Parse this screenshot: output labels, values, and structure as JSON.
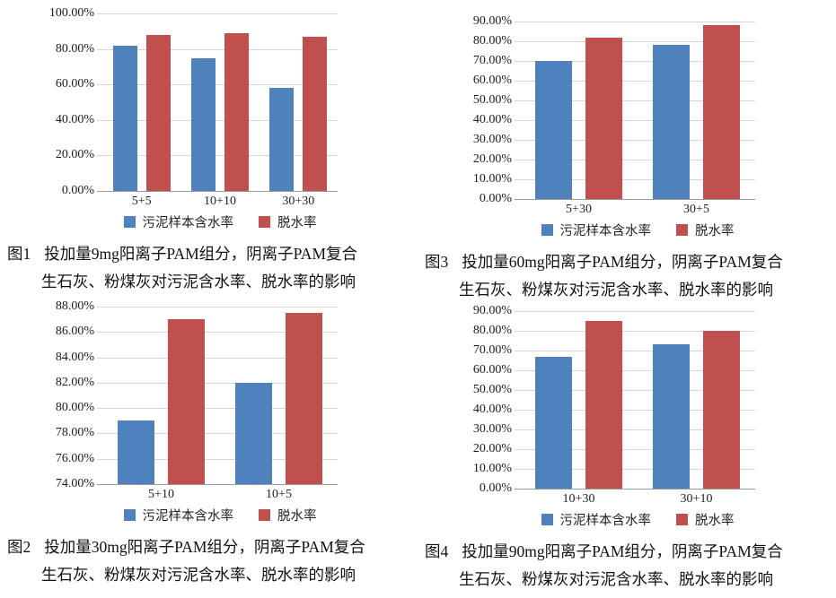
{
  "legend_labels": {
    "moisture": "污泥样本含水率",
    "dewatering": "脱水率"
  },
  "colors": {
    "moisture": "#4F81BD",
    "dewatering": "#C0504D",
    "gridline": "#d6d6d6",
    "axis": "#9b9b9b"
  },
  "chart_data": [
    {
      "id": "figure-1",
      "type": "bar",
      "categories": [
        "5+5",
        "10+10",
        "30+30"
      ],
      "series": [
        {
          "key": "moisture",
          "name": "污泥样本含水率",
          "color": "#4F81BD",
          "values": [
            82,
            75,
            58
          ]
        },
        {
          "key": "dewatering",
          "name": "脱水率",
          "color": "#C0504D",
          "values": [
            88,
            89,
            87
          ]
        }
      ],
      "ylim": [
        0,
        100
      ],
      "ystep": 20,
      "tick_decimals": 2,
      "tick_suffix": "%",
      "grid": true,
      "legend_position": "bottom",
      "caption": {
        "label": "图1",
        "line1": "投加量9mg阳离子PAM组分，阴离子PAM复合",
        "line2": "生石灰、粉煤灰对污泥含水率、脱水率的影响"
      }
    },
    {
      "id": "figure-2",
      "type": "bar",
      "categories": [
        "5+10",
        "10+5"
      ],
      "series": [
        {
          "key": "moisture",
          "name": "污泥样本含水率",
          "color": "#4F81BD",
          "values": [
            79,
            82
          ]
        },
        {
          "key": "dewatering",
          "name": "脱水率",
          "color": "#C0504D",
          "values": [
            87,
            87.5
          ]
        }
      ],
      "ylim": [
        74,
        88
      ],
      "ystep": 2,
      "tick_decimals": 2,
      "tick_suffix": "%",
      "grid": true,
      "legend_position": "bottom",
      "caption": {
        "label": "图2",
        "line1": "投加量30mg阳离子PAM组分，阴离子PAM复合",
        "line2": "生石灰、粉煤灰对污泥含水率、脱水率的影响"
      }
    },
    {
      "id": "figure-3",
      "type": "bar",
      "categories": [
        "5+30",
        "30+5"
      ],
      "series": [
        {
          "key": "moisture",
          "name": "污泥样本含水率",
          "color": "#4F81BD",
          "values": [
            70,
            78
          ]
        },
        {
          "key": "dewatering",
          "name": "脱水率",
          "color": "#C0504D",
          "values": [
            82,
            88
          ]
        }
      ],
      "ylim": [
        0,
        90
      ],
      "ystep": 10,
      "tick_decimals": 2,
      "tick_suffix": "%",
      "grid": true,
      "legend_position": "bottom",
      "caption": {
        "label": "图3",
        "line1": "投加量60mg阳离子PAM组分，阴离子PAM复合",
        "line2": "生石灰、粉煤灰对污泥含水率、脱水率的影响"
      }
    },
    {
      "id": "figure-4",
      "type": "bar",
      "categories": [
        "10+30",
        "30+10"
      ],
      "series": [
        {
          "key": "moisture",
          "name": "污泥样本含水率",
          "color": "#4F81BD",
          "values": [
            67,
            73
          ]
        },
        {
          "key": "dewatering",
          "name": "脱水率",
          "color": "#C0504D",
          "values": [
            85,
            80
          ]
        }
      ],
      "ylim": [
        0,
        90
      ],
      "ystep": 10,
      "tick_decimals": 2,
      "tick_suffix": "%",
      "grid": true,
      "legend_position": "bottom",
      "caption": {
        "label": "图4",
        "line1": "投加量90mg阳离子PAM组分，阴离子PAM复合",
        "line2": "生石灰、粉煤灰对污泥含水率、脱水率的影响"
      }
    }
  ]
}
